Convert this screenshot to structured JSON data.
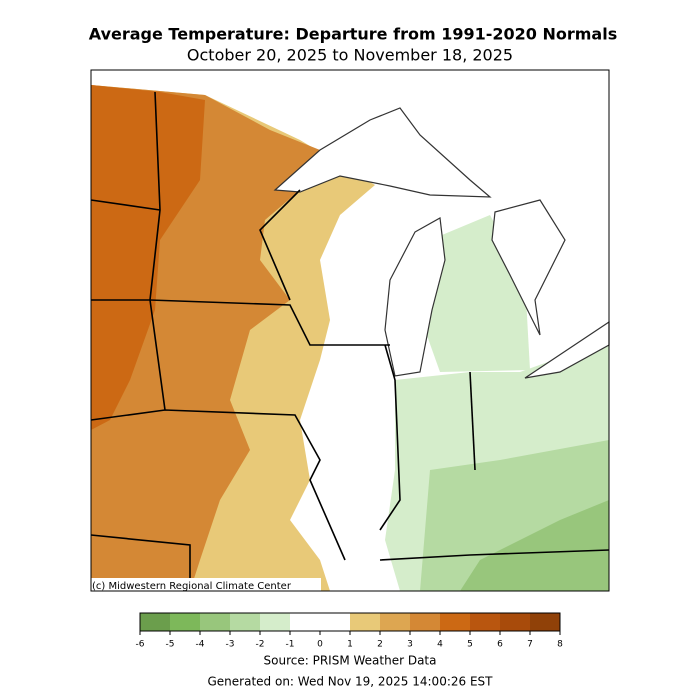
{
  "title": "Average Temperature: Departure from 1991-2020 Normals",
  "subtitle": "October 20, 2025 to November 18, 2025",
  "map": {
    "credit": "(c) Midwestern Regional Climate Center"
  },
  "colorbar": {
    "lim": [
      -6,
      8
    ],
    "ticks": [
      -6,
      -5,
      -4,
      -3,
      -2,
      -1,
      0,
      1,
      2,
      3,
      4,
      5,
      6,
      7,
      8
    ],
    "colors": [
      "#6b9e4c",
      "#7db85a",
      "#98c67c",
      "#b5daa2",
      "#d5edcb",
      "#ffffff",
      "#ffffff",
      "#e8c978",
      "#dda651",
      "#d48835",
      "#cc6914",
      "#b9560f",
      "#a84b0b",
      "#904108"
    ]
  },
  "source": "Source: PRISM Weather Data",
  "generated": "Generated on: Wed Nov 19, 2025 14:00:26 EST"
}
